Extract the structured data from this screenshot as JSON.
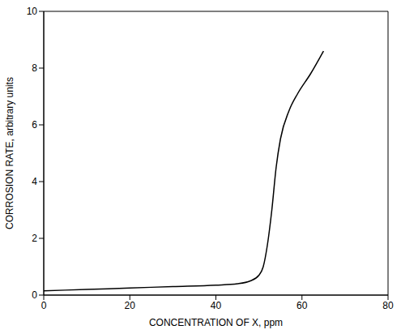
{
  "chart_data": {
    "type": "line",
    "x_label": "CONCENTRATION OF X, ppm",
    "y_label": "CORROSION RATE, arbitrary units",
    "x": [
      0,
      10,
      20,
      30,
      40,
      45,
      48,
      50,
      51,
      52,
      53,
      54,
      55,
      57,
      59,
      62,
      65
    ],
    "values": [
      0.15,
      0.2,
      0.25,
      0.3,
      0.35,
      0.4,
      0.5,
      0.7,
      1.0,
      1.8,
      3.0,
      4.5,
      5.5,
      6.5,
      7.1,
      7.8,
      8.6
    ],
    "color": "#000000",
    "xlim": [
      0,
      80
    ],
    "xticks": [
      0,
      20,
      40,
      60,
      80
    ],
    "ylim": [
      0,
      10
    ],
    "yticks": [
      0,
      2,
      4,
      6,
      8,
      10
    ],
    "grid": false
  }
}
